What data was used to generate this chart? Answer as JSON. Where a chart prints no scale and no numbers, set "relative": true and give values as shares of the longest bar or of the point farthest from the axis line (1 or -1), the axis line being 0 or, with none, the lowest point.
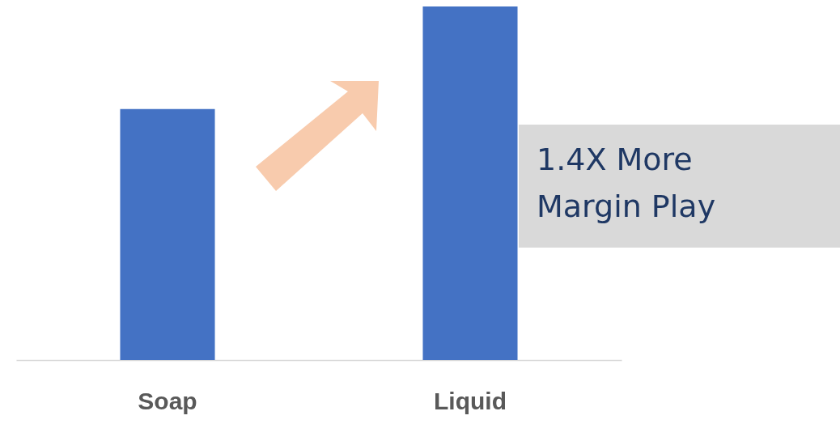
{
  "chart_data": {
    "type": "bar",
    "categories": [
      "Soap",
      "Liquid"
    ],
    "values": [
      0.71,
      1
    ],
    "color": "#4472c4",
    "relative": true,
    "annotations": [
      "1.4X More Margin Play"
    ]
  }
}
